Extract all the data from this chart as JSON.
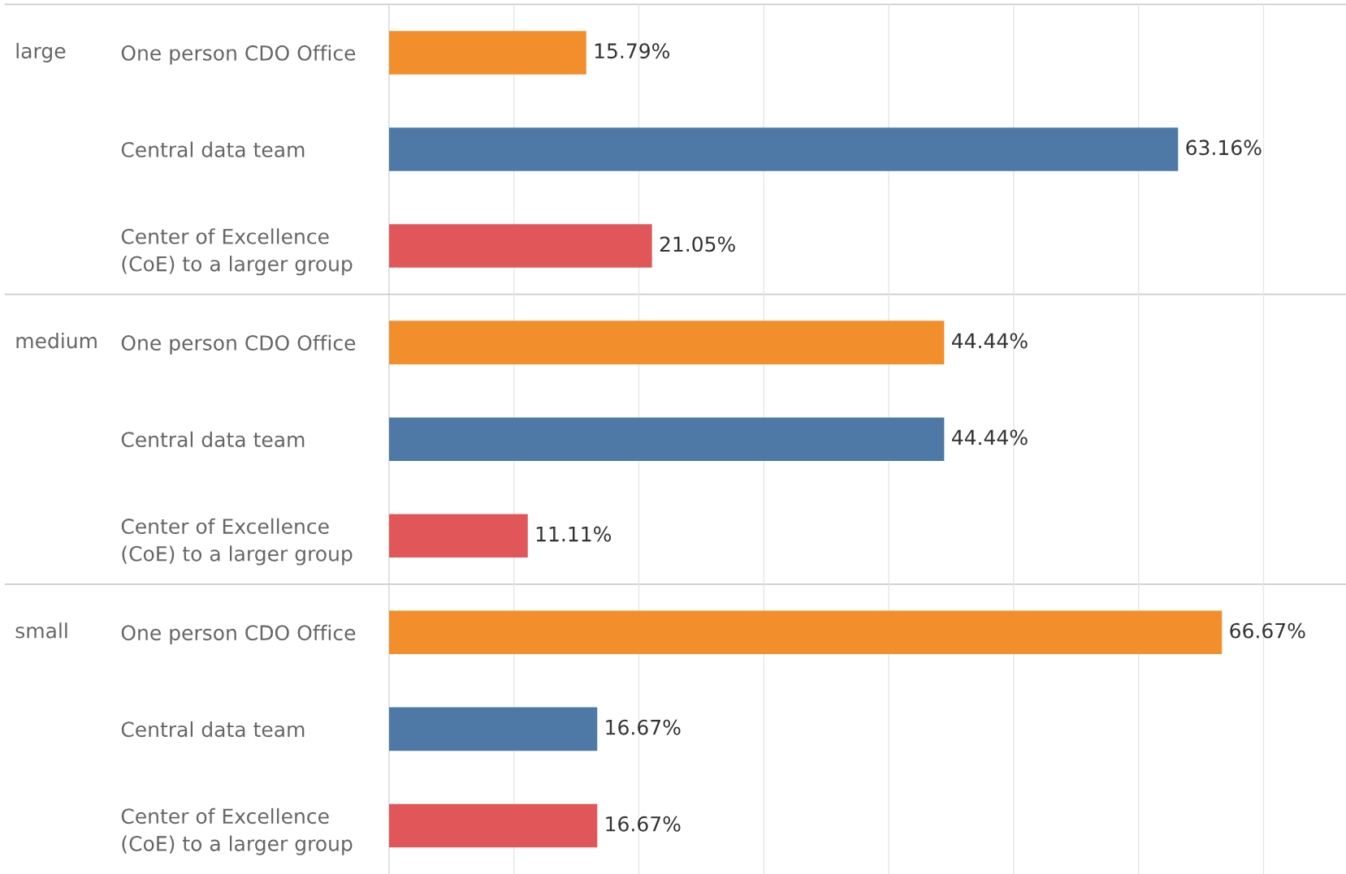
{
  "chart_data": {
    "type": "bar",
    "orientation": "horizontal",
    "categories": [
      "One person CDO Office",
      "Central data team",
      "Center of Excellence\n(CoE) to a larger group",
      "One person CDO Office",
      "Central data team",
      "Center of Excellence\n(CoE) to a larger group",
      "One person CDO Office",
      "Central data team",
      "Center of Excellence\n(CoE) to a larger group"
    ],
    "values": [
      15.79,
      63.16,
      21.05,
      44.44,
      44.44,
      11.11,
      66.67,
      16.67,
      16.67
    ],
    "value_labels": [
      "15.79%",
      "63.16%",
      "21.05%",
      "44.44%",
      "44.44%",
      "11.11%",
      "66.67%",
      "16.67%",
      "16.67%"
    ],
    "colors": [
      "#f28e2b",
      "#4e79a7",
      "#e15759",
      "#f28e2b",
      "#4e79a7",
      "#e15759",
      "#f28e2b",
      "#4e79a7",
      "#e15759"
    ],
    "annotations": [
      "large",
      "medium",
      "small"
    ],
    "xlim": [
      0,
      76.6
    ],
    "xticks": [
      {
        "value": 10,
        "label": null
      },
      {
        "value": 20,
        "label": null
      },
      {
        "value": 30,
        "label": null
      },
      {
        "value": 40,
        "label": null
      },
      {
        "value": 50,
        "label": null
      },
      {
        "value": 60,
        "label": null
      },
      {
        "value": 70,
        "label": null
      }
    ],
    "tick_labels": "y",
    "grid": "x"
  }
}
